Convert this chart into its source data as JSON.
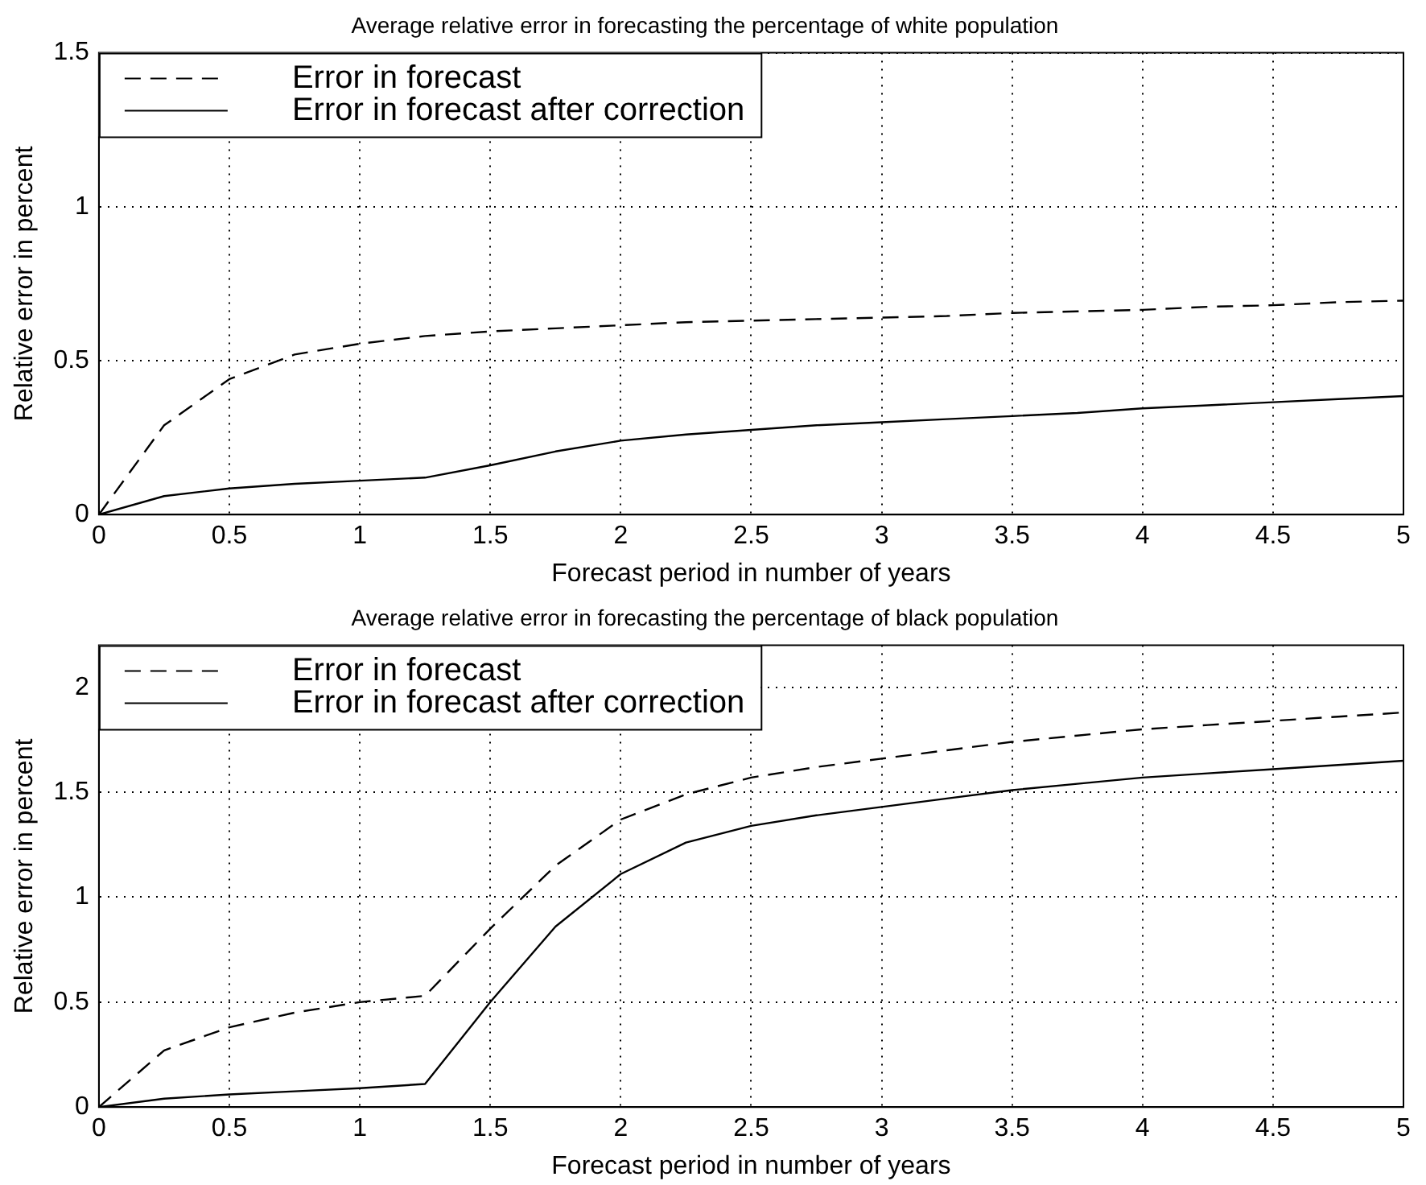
{
  "chart_data": [
    {
      "type": "line",
      "title": "Average relative error in forecasting the percentage of white population",
      "xlabel": "Forecast period in number of years",
      "ylabel": "Relative error in percent",
      "x": [
        0,
        0.25,
        0.5,
        0.75,
        1,
        1.25,
        1.5,
        1.75,
        2,
        2.25,
        2.5,
        2.75,
        3,
        3.25,
        3.5,
        3.75,
        4,
        4.25,
        4.5,
        4.75,
        5
      ],
      "series": [
        {
          "name": "Error in forecast",
          "color": "#000000",
          "line_style": "dashed",
          "values": [
            0,
            0.29,
            0.44,
            0.52,
            0.555,
            0.58,
            0.595,
            0.605,
            0.615,
            0.625,
            0.63,
            0.635,
            0.64,
            0.645,
            0.655,
            0.66,
            0.665,
            0.675,
            0.68,
            0.69,
            0.695
          ]
        },
        {
          "name": "Error in forecast after correction",
          "color": "#000000",
          "line_style": "solid",
          "values": [
            0,
            0.06,
            0.085,
            0.1,
            0.11,
            0.12,
            0.16,
            0.205,
            0.24,
            0.26,
            0.275,
            0.29,
            0.3,
            0.31,
            0.32,
            0.33,
            0.345,
            0.355,
            0.365,
            0.375,
            0.385
          ]
        }
      ],
      "xlim": [
        0,
        5
      ],
      "xticks": [
        0,
        0.5,
        1,
        1.5,
        2,
        2.5,
        3,
        3.5,
        4,
        4.5,
        5
      ],
      "ylim": [
        0,
        1.5
      ],
      "yticks": [
        0,
        0.5,
        1,
        1.5
      ],
      "grid": true,
      "legend": "top left",
      "marker": "none"
    },
    {
      "type": "line",
      "title": "Average relative error in forecasting the percentage of black population",
      "xlabel": "Forecast period in number of years",
      "ylabel": "Relative error in percent",
      "x": [
        0,
        0.25,
        0.5,
        0.75,
        1,
        1.25,
        1.5,
        1.75,
        2,
        2.25,
        2.5,
        2.75,
        3,
        3.25,
        3.5,
        3.75,
        4,
        4.25,
        4.5,
        4.75,
        5
      ],
      "series": [
        {
          "name": "Error in forecast",
          "color": "#000000",
          "line_style": "dashed",
          "values": [
            0,
            0.27,
            0.38,
            0.45,
            0.5,
            0.53,
            0.85,
            1.15,
            1.37,
            1.49,
            1.57,
            1.62,
            1.66,
            1.7,
            1.74,
            1.77,
            1.8,
            1.82,
            1.84,
            1.86,
            1.88
          ]
        },
        {
          "name": "Error in forecast after correction",
          "color": "#000000",
          "line_style": "solid",
          "values": [
            0,
            0.04,
            0.06,
            0.075,
            0.09,
            0.11,
            0.5,
            0.86,
            1.11,
            1.26,
            1.34,
            1.39,
            1.43,
            1.47,
            1.51,
            1.54,
            1.57,
            1.59,
            1.61,
            1.63,
            1.65
          ]
        }
      ],
      "xlim": [
        0,
        5
      ],
      "xticks": [
        0,
        0.5,
        1,
        1.5,
        2,
        2.5,
        3,
        3.5,
        4,
        4.5,
        5
      ],
      "ylim": [
        0,
        2.2
      ],
      "yticks": [
        0,
        0.5,
        1,
        1.5,
        2
      ],
      "grid": true,
      "legend": "top left",
      "marker": "none"
    }
  ]
}
